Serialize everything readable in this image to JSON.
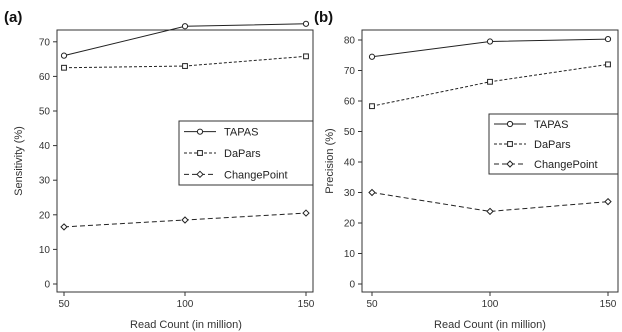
{
  "chart_data": [
    {
      "type": "line",
      "panel_label_letter": "a",
      "x": [
        50,
        100,
        150
      ],
      "xticks": [
        50,
        100,
        150
      ],
      "xlabel": "Read Count (in million)",
      "ylabel": "Sensitivity (%)",
      "ylim": [
        0,
        75
      ],
      "yticks": [
        0,
        10,
        20,
        30,
        40,
        50,
        60,
        70
      ],
      "grid": false,
      "legend_position": "right",
      "series": [
        {
          "name": "TAPAS",
          "marker": "circle",
          "dash": "solid",
          "values": [
            66,
            74.5,
            75.2
          ]
        },
        {
          "name": "DaPars",
          "marker": "square",
          "dash": "dashed",
          "values": [
            62.5,
            63,
            65.8
          ]
        },
        {
          "name": "ChangePoint",
          "marker": "diamond",
          "dash": "longdash",
          "values": [
            16.5,
            18.5,
            20.5
          ]
        }
      ]
    },
    {
      "type": "line",
      "panel_label_letter": "b",
      "x": [
        50,
        100,
        150
      ],
      "xticks": [
        50,
        100,
        150
      ],
      "xlabel": "Read Count (in million)",
      "ylabel": "Precision (%)",
      "ylim": [
        0,
        82
      ],
      "yticks": [
        0,
        10,
        20,
        30,
        40,
        50,
        60,
        70,
        80
      ],
      "grid": false,
      "legend_position": "right",
      "series": [
        {
          "name": "TAPAS",
          "marker": "circle",
          "dash": "solid",
          "values": [
            74.5,
            79.5,
            80.3
          ]
        },
        {
          "name": "DaPars",
          "marker": "square",
          "dash": "dashed",
          "values": [
            58.3,
            66.3,
            72
          ]
        },
        {
          "name": "ChangePoint",
          "marker": "diamond",
          "dash": "longdash",
          "values": [
            30,
            23.8,
            27
          ]
        }
      ]
    }
  ]
}
